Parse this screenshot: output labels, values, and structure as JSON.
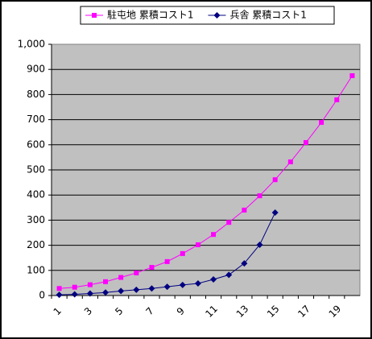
{
  "chart_data": {
    "type": "line",
    "categories": [
      1,
      null,
      3,
      null,
      5,
      null,
      7,
      null,
      9,
      null,
      11,
      null,
      13,
      null,
      15,
      null,
      17,
      null,
      19,
      null
    ],
    "series": [
      {
        "name": "駐屯地 累積コスト1",
        "color": "#ff00ff",
        "marker": "square",
        "values": [
          28,
          33,
          43,
          55,
          72,
          90,
          112,
          135,
          167,
          202,
          243,
          291,
          340,
          397,
          461,
          532,
          609,
          689,
          779,
          875
        ]
      },
      {
        "name": "兵舎 累積コスト1",
        "color": "#000080",
        "marker": "diamond",
        "values": [
          3,
          5,
          8,
          12,
          18,
          23,
          28,
          35,
          42,
          48,
          64,
          82,
          128,
          202,
          330,
          null,
          null,
          null,
          null,
          null
        ]
      }
    ],
    "ylim": [
      0,
      1000
    ],
    "yticks": [
      0,
      100,
      200,
      300,
      400,
      500,
      600,
      700,
      800,
      900,
      {
        "value": 1000,
        "label": "1,000"
      }
    ],
    "grid": true,
    "legend": "top"
  }
}
